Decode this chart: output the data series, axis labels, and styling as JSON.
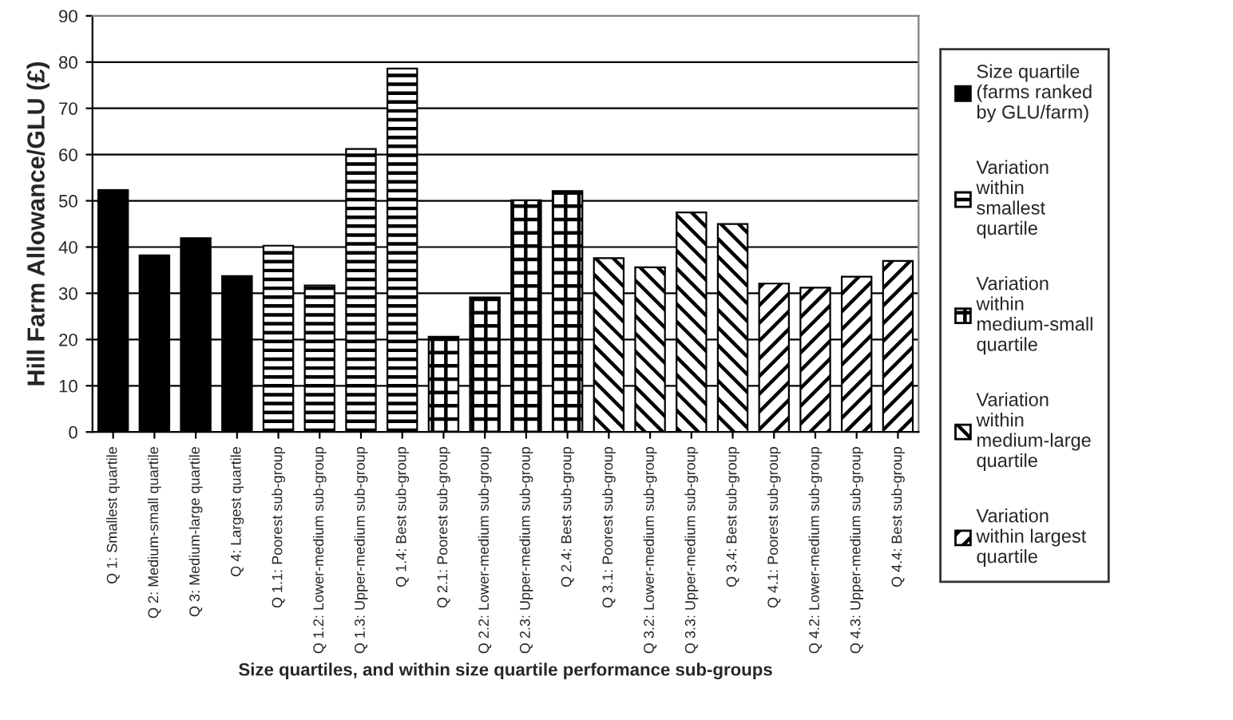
{
  "chart_data": {
    "type": "bar",
    "xlabel": "Size quartiles, and within size quartile performance sub-groups",
    "ylabel": "Hill Farm Allowance/GLU (£)",
    "categories": [
      "Q 1: Smallest quartile",
      "Q 2: Medium-small quartile",
      "Q 3: Medium-large quartile",
      "Q 4: Largest quartile",
      "Q 1.1: Poorest sub-group",
      "Q 1.2: Lower-medium sub-group",
      "Q 1.3: Upper-medium sub-group",
      "Q 1.4: Best sub-group",
      "Q 2.1: Poorest sub-group",
      "Q 2.2: Lower-medium sub-group",
      "Q 2.3: Upper-medium sub-group",
      "Q 2.4: Best sub-group",
      "Q 3.1: Poorest sub-group",
      "Q 3.2: Lower-medium sub-group",
      "Q 3.3: Upper-medium sub-group",
      "Q 3.4: Best sub-group",
      "Q 4.1: Poorest sub-group",
      "Q 4.2: Lower-medium sub-group",
      "Q 4.3: Upper-medium sub-group",
      "Q 4.4: Best sub-group"
    ],
    "series": [
      {
        "name": "Size quartile (farms ranked by GLU/farm)",
        "color": "#000000",
        "values": [
          52.3,
          38.2,
          41.9,
          33.7,
          null,
          null,
          null,
          null,
          null,
          null,
          null,
          null,
          null,
          null,
          null,
          null,
          null,
          null,
          null,
          null
        ]
      },
      {
        "name": "Variation within smallest quartile",
        "color": "#000000",
        "values": [
          null,
          null,
          null,
          null,
          40.3,
          31.7,
          61.2,
          78.6,
          null,
          null,
          null,
          null,
          null,
          null,
          null,
          null,
          null,
          null,
          null,
          null
        ]
      },
      {
        "name": "Variation within medium-small quartile",
        "color": "#000000",
        "values": [
          null,
          null,
          null,
          null,
          null,
          null,
          null,
          null,
          20.6,
          29.1,
          50.1,
          52.1,
          null,
          null,
          null,
          null,
          null,
          null,
          null,
          null
        ]
      },
      {
        "name": "Variation within medium-large quartile",
        "color": "#000000",
        "values": [
          null,
          null,
          null,
          null,
          null,
          null,
          null,
          null,
          null,
          null,
          null,
          null,
          37.6,
          35.6,
          47.5,
          45.0,
          null,
          null,
          null,
          null
        ]
      },
      {
        "name": "Variation within largest quartile",
        "color": "#000000",
        "values": [
          null,
          null,
          null,
          null,
          null,
          null,
          null,
          null,
          null,
          null,
          null,
          null,
          null,
          null,
          null,
          null,
          32.1,
          31.2,
          33.6,
          37.0
        ]
      }
    ],
    "ylim": [
      0,
      90
    ],
    "yticks": [
      0,
      10,
      20,
      30,
      40,
      50,
      60,
      70,
      80,
      90
    ],
    "grid": "y",
    "legend": "right"
  }
}
